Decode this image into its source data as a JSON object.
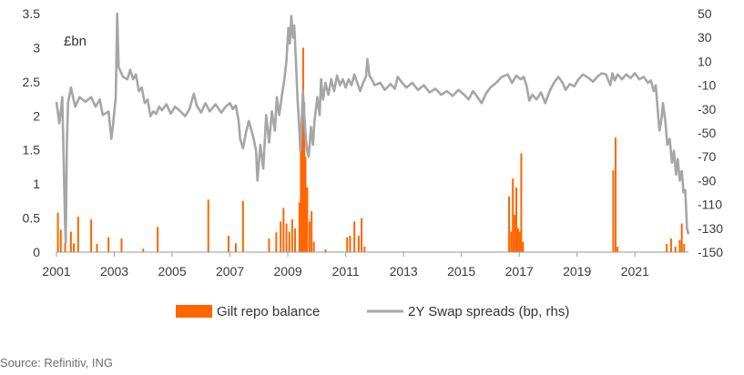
{
  "chart_data": {
    "type": "bar",
    "unit_label": "£bn",
    "x_ticks": [
      "2001",
      "2003",
      "2005",
      "2007",
      "2009",
      "2011",
      "2013",
      "2015",
      "2017",
      "2019",
      "2021"
    ],
    "y_left": {
      "ticks": [
        "0",
        "0.5",
        "1",
        "1.5",
        "2",
        "2.5",
        "3",
        "3.5"
      ],
      "range": [
        0,
        3.5
      ]
    },
    "y_right": {
      "ticks": [
        "50",
        "30",
        "10",
        "-10",
        "-30",
        "-50",
        "-70",
        "-90",
        "-110",
        "-130",
        "-150"
      ],
      "range": [
        -150,
        50
      ]
    },
    "x_range": [
      2001.0,
      2022.85
    ],
    "grid": false,
    "legend_position": "bottom",
    "colors": {
      "repo": "#ff6600",
      "swap": "#a6a6a6",
      "axis": "#9a9a9a"
    },
    "series": [
      {
        "name": "Gilt repo balance",
        "type": "bar",
        "axis": "left",
        "points": [
          [
            2001.05,
            0.58
          ],
          [
            2001.15,
            0.33
          ],
          [
            2001.3,
            0.14
          ],
          [
            2001.5,
            0.3
          ],
          [
            2001.6,
            0.13
          ],
          [
            2001.75,
            0.52
          ],
          [
            2002.2,
            0.48
          ],
          [
            2002.4,
            0.12
          ],
          [
            2002.8,
            0.22
          ],
          [
            2003.25,
            0.2
          ],
          [
            2004.0,
            0.05
          ],
          [
            2004.5,
            0.37
          ],
          [
            2006.25,
            0.77
          ],
          [
            2006.95,
            0.24
          ],
          [
            2007.2,
            0.13
          ],
          [
            2007.45,
            0.75
          ],
          [
            2008.35,
            0.2
          ],
          [
            2008.6,
            0.29
          ],
          [
            2008.75,
            0.45
          ],
          [
            2008.85,
            0.65
          ],
          [
            2008.95,
            0.42
          ],
          [
            2009.05,
            0.3
          ],
          [
            2009.15,
            0.48
          ],
          [
            2009.25,
            0.35
          ],
          [
            2009.4,
            0.73
          ],
          [
            2009.45,
            1.5
          ],
          [
            2009.5,
            2.05
          ],
          [
            2009.53,
            3.0
          ],
          [
            2009.57,
            2.2
          ],
          [
            2009.61,
            1.4
          ],
          [
            2009.67,
            0.95
          ],
          [
            2009.75,
            0.45
          ],
          [
            2009.82,
            0.6
          ],
          [
            2009.9,
            0.15
          ],
          [
            2010.3,
            0.04
          ],
          [
            2011.05,
            0.22
          ],
          [
            2011.15,
            0.24
          ],
          [
            2011.3,
            0.45
          ],
          [
            2011.45,
            0.24
          ],
          [
            2011.55,
            0.5
          ],
          [
            2011.65,
            0.08
          ],
          [
            2016.65,
            0.82
          ],
          [
            2016.72,
            0.3
          ],
          [
            2016.78,
            1.08
          ],
          [
            2016.84,
            0.55
          ],
          [
            2016.9,
            0.95
          ],
          [
            2016.96,
            0.35
          ],
          [
            2017.02,
            0.3
          ],
          [
            2017.07,
            1.45
          ],
          [
            2017.13,
            0.15
          ],
          [
            2020.25,
            1.2
          ],
          [
            2020.33,
            1.68
          ],
          [
            2020.4,
            0.08
          ],
          [
            2022.1,
            0.12
          ],
          [
            2022.25,
            0.2
          ],
          [
            2022.4,
            0.08
          ],
          [
            2022.55,
            0.18
          ],
          [
            2022.62,
            0.42
          ],
          [
            2022.7,
            0.12
          ]
        ]
      },
      {
        "name": "2Y Swap spreads (bp, rhs)",
        "type": "line",
        "axis": "right",
        "points": [
          [
            2001.0,
            -24
          ],
          [
            2001.1,
            -42
          ],
          [
            2001.2,
            -20
          ],
          [
            2001.3,
            -128
          ],
          [
            2001.32,
            -142
          ],
          [
            2001.36,
            -60
          ],
          [
            2001.4,
            -25
          ],
          [
            2001.5,
            -12
          ],
          [
            2001.65,
            -28
          ],
          [
            2001.8,
            -20
          ],
          [
            2002.0,
            -24
          ],
          [
            2002.2,
            -20
          ],
          [
            2002.35,
            -28
          ],
          [
            2002.5,
            -22
          ],
          [
            2002.6,
            -35
          ],
          [
            2002.8,
            -32
          ],
          [
            2002.9,
            -55
          ],
          [
            2002.95,
            -45
          ],
          [
            2003.05,
            -20
          ],
          [
            2003.1,
            50
          ],
          [
            2003.15,
            5
          ],
          [
            2003.3,
            -3
          ],
          [
            2003.45,
            -5
          ],
          [
            2003.55,
            3
          ],
          [
            2003.65,
            -5
          ],
          [
            2003.75,
            -1
          ],
          [
            2003.85,
            -15
          ],
          [
            2003.95,
            -12
          ],
          [
            2004.05,
            -25
          ],
          [
            2004.15,
            -22
          ],
          [
            2004.25,
            -36
          ],
          [
            2004.35,
            -32
          ],
          [
            2004.45,
            -34
          ],
          [
            2004.55,
            -28
          ],
          [
            2004.65,
            -31
          ],
          [
            2004.8,
            -26
          ],
          [
            2004.95,
            -34
          ],
          [
            2005.1,
            -28
          ],
          [
            2005.25,
            -31
          ],
          [
            2005.45,
            -36
          ],
          [
            2005.6,
            -30
          ],
          [
            2005.75,
            -17
          ],
          [
            2005.85,
            -27
          ],
          [
            2006.0,
            -33
          ],
          [
            2006.15,
            -25
          ],
          [
            2006.3,
            -32
          ],
          [
            2006.5,
            -26
          ],
          [
            2006.7,
            -33
          ],
          [
            2006.85,
            -28
          ],
          [
            2007.0,
            -25
          ],
          [
            2007.1,
            -30
          ],
          [
            2007.2,
            -27
          ],
          [
            2007.3,
            -40
          ],
          [
            2007.35,
            -55
          ],
          [
            2007.45,
            -63
          ],
          [
            2007.55,
            -50
          ],
          [
            2007.65,
            -40
          ],
          [
            2007.8,
            -53
          ],
          [
            2007.9,
            -65
          ],
          [
            2007.95,
            -90
          ],
          [
            2008.05,
            -60
          ],
          [
            2008.15,
            -80
          ],
          [
            2008.25,
            -35
          ],
          [
            2008.35,
            -58
          ],
          [
            2008.45,
            -32
          ],
          [
            2008.55,
            -48
          ],
          [
            2008.62,
            -20
          ],
          [
            2008.7,
            -35
          ],
          [
            2008.8,
            -18
          ],
          [
            2008.88,
            -5
          ],
          [
            2008.95,
            10
          ],
          [
            2009.02,
            38
          ],
          [
            2009.07,
            25
          ],
          [
            2009.12,
            48
          ],
          [
            2009.18,
            30
          ],
          [
            2009.22,
            40
          ],
          [
            2009.28,
            10
          ],
          [
            2009.33,
            -20
          ],
          [
            2009.38,
            -40
          ],
          [
            2009.43,
            -65
          ],
          [
            2009.48,
            -40
          ],
          [
            2009.52,
            -15
          ],
          [
            2009.57,
            -35
          ],
          [
            2009.62,
            -55
          ],
          [
            2009.67,
            -65
          ],
          [
            2009.72,
            -70
          ],
          [
            2009.8,
            -45
          ],
          [
            2009.87,
            -60
          ],
          [
            2009.92,
            -40
          ],
          [
            2009.97,
            -30
          ],
          [
            2010.02,
            -20
          ],
          [
            2010.1,
            -35
          ],
          [
            2010.15,
            -5
          ],
          [
            2010.22,
            -22
          ],
          [
            2010.3,
            -8
          ],
          [
            2010.4,
            -18
          ],
          [
            2010.5,
            -5
          ],
          [
            2010.6,
            -15
          ],
          [
            2010.7,
            -2
          ],
          [
            2010.8,
            -10
          ],
          [
            2010.9,
            -5
          ],
          [
            2011.0,
            -12
          ],
          [
            2011.1,
            -5
          ],
          [
            2011.2,
            -10
          ],
          [
            2011.3,
            -1
          ],
          [
            2011.4,
            -8
          ],
          [
            2011.5,
            -15
          ],
          [
            2011.6,
            -8
          ],
          [
            2011.7,
            -3
          ],
          [
            2011.75,
            12
          ],
          [
            2011.82,
            -2
          ],
          [
            2011.9,
            -5
          ],
          [
            2012.0,
            -10
          ],
          [
            2012.2,
            -8
          ],
          [
            2012.35,
            -14
          ],
          [
            2012.55,
            -9
          ],
          [
            2012.7,
            -13
          ],
          [
            2012.8,
            -3
          ],
          [
            2012.95,
            -8
          ],
          [
            2013.1,
            -12
          ],
          [
            2013.3,
            -8
          ],
          [
            2013.5,
            -14
          ],
          [
            2013.7,
            -10
          ],
          [
            2013.9,
            -16
          ],
          [
            2014.1,
            -13
          ],
          [
            2014.3,
            -18
          ],
          [
            2014.5,
            -15
          ],
          [
            2014.7,
            -19
          ],
          [
            2014.9,
            -14
          ],
          [
            2015.1,
            -18
          ],
          [
            2015.25,
            -22
          ],
          [
            2015.4,
            -15
          ],
          [
            2015.5,
            -18
          ],
          [
            2015.7,
            -25
          ],
          [
            2015.85,
            -17
          ],
          [
            2016.0,
            -12
          ],
          [
            2016.2,
            -8
          ],
          [
            2016.4,
            -3
          ],
          [
            2016.6,
            -1
          ],
          [
            2016.75,
            -8
          ],
          [
            2016.9,
            -2
          ],
          [
            2017.05,
            -5
          ],
          [
            2017.15,
            -3
          ],
          [
            2017.25,
            -10
          ],
          [
            2017.35,
            -23
          ],
          [
            2017.45,
            -18
          ],
          [
            2017.6,
            -22
          ],
          [
            2017.75,
            -16
          ],
          [
            2017.9,
            -25
          ],
          [
            2018.05,
            -15
          ],
          [
            2018.2,
            -8
          ],
          [
            2018.35,
            -3
          ],
          [
            2018.5,
            -8
          ],
          [
            2018.6,
            -14
          ],
          [
            2018.75,
            -9
          ],
          [
            2018.9,
            -11
          ],
          [
            2019.05,
            -5
          ],
          [
            2019.2,
            -1
          ],
          [
            2019.4,
            -4
          ],
          [
            2019.55,
            -7
          ],
          [
            2019.7,
            -3
          ],
          [
            2019.85,
            0
          ],
          [
            2020.0,
            -1
          ],
          [
            2020.15,
            -10
          ],
          [
            2020.22,
            0
          ],
          [
            2020.3,
            -6
          ],
          [
            2020.4,
            -1
          ],
          [
            2020.55,
            -5
          ],
          [
            2020.7,
            -1
          ],
          [
            2020.85,
            -4
          ],
          [
            2021.0,
            0
          ],
          [
            2021.15,
            -5
          ],
          [
            2021.3,
            -3
          ],
          [
            2021.45,
            -8
          ],
          [
            2021.55,
            -6
          ],
          [
            2021.65,
            -15
          ],
          [
            2021.72,
            -10
          ],
          [
            2021.78,
            -28
          ],
          [
            2021.85,
            -48
          ],
          [
            2021.92,
            -38
          ],
          [
            2021.97,
            -25
          ],
          [
            2022.05,
            -40
          ],
          [
            2022.12,
            -60
          ],
          [
            2022.2,
            -55
          ],
          [
            2022.28,
            -75
          ],
          [
            2022.35,
            -65
          ],
          [
            2022.42,
            -85
          ],
          [
            2022.48,
            -72
          ],
          [
            2022.55,
            -90
          ],
          [
            2022.62,
            -82
          ],
          [
            2022.68,
            -100
          ],
          [
            2022.74,
            -98
          ],
          [
            2022.8,
            -130
          ],
          [
            2022.85,
            -135
          ]
        ]
      }
    ]
  },
  "source": "Source: Refinitiv, ING"
}
